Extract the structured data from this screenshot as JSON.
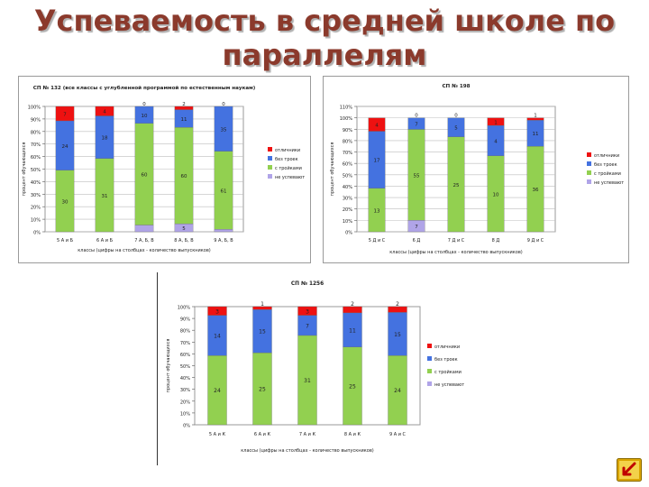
{
  "slide": {
    "title_line1": "Успеваемость в средней школе по",
    "title_line2": "параллелям",
    "nav_icon": "return-arrow-icon",
    "colors": {
      "title": "#8b3a2c",
      "nav_bg": "#d9a400",
      "nav_arrow": "#c00000"
    }
  },
  "chart_data": [
    {
      "type": "bar",
      "stacked": "percent",
      "title": "СП № 132 (все классы с углубленной программой по естественным наукам)",
      "xlabel": "классы (цифры на столбцах - количество выпускников)",
      "ylabel": "процент обучающихся",
      "ylim": [
        0,
        100
      ],
      "yticks": [
        "0%",
        "10%",
        "20%",
        "30%",
        "40%",
        "50%",
        "60%",
        "70%",
        "80%",
        "90%",
        "100%"
      ],
      "grid": true,
      "legend_position": "right",
      "categories": [
        "5 А и Б",
        "6 А и Б",
        "7 А, Б, В",
        "8 А, Б, В",
        "9 А, Б, В"
      ],
      "series": [
        {
          "name": "не успевают",
          "color": "#b0a4e8",
          "values": [
            0,
            0,
            4,
            5,
            2
          ],
          "labels": [
            "",
            "",
            "4",
            "5",
            "2"
          ]
        },
        {
          "name": "с тройками",
          "color": "#92d050",
          "values": [
            30,
            31,
            60,
            60,
            61
          ],
          "labels": [
            "30",
            "31",
            "60",
            "60",
            "61"
          ]
        },
        {
          "name": "без троек",
          "color": "#4472e0",
          "values": [
            24,
            18,
            10,
            11,
            35
          ],
          "labels": [
            "24",
            "18",
            "10",
            "11",
            "35"
          ]
        },
        {
          "name": "отличники",
          "color": "#ee1111",
          "values": [
            7,
            4,
            0,
            2,
            0
          ],
          "labels": [
            "7",
            "4",
            "0",
            "2",
            "0"
          ]
        }
      ]
    },
    {
      "type": "bar",
      "stacked": "percent",
      "title": "СП № 198",
      "xlabel": "классы (цифры на столбцах - количество выпускников)",
      "ylabel": "процент обучающихся",
      "ylim": [
        0,
        100
      ],
      "yticks": [
        "0%",
        "10%",
        "20%",
        "30%",
        "40%",
        "50%",
        "60%",
        "70%",
        "80%",
        "90%",
        "100%",
        "110%"
      ],
      "grid": true,
      "legend_position": "right",
      "categories": [
        "5 Д и С",
        "6 Д",
        "7 Д и С",
        "8 Д",
        "9 Д и С"
      ],
      "series": [
        {
          "name": "не успевают",
          "color": "#b0a4e8",
          "values": [
            0,
            7,
            0,
            0,
            0
          ],
          "labels": [
            "",
            "7",
            "",
            "",
            ""
          ]
        },
        {
          "name": "с тройками",
          "color": "#92d050",
          "values": [
            13,
            55,
            25,
            10,
            36
          ],
          "labels": [
            "13",
            "55",
            "25",
            "10",
            "36"
          ]
        },
        {
          "name": "без троек",
          "color": "#4472e0",
          "values": [
            17,
            7,
            5,
            4,
            11
          ],
          "labels": [
            "17",
            "7",
            "5",
            "4",
            "11"
          ]
        },
        {
          "name": "отличники",
          "color": "#ee1111",
          "values": [
            4,
            0,
            0,
            1,
            1
          ],
          "labels": [
            "4",
            "0",
            "0",
            "1",
            "1"
          ]
        }
      ]
    },
    {
      "type": "bar",
      "stacked": "percent",
      "title": "СП № 1256",
      "xlabel": "классы (цифры на столбцах - количество выпускников)",
      "ylabel": "процент обучающихся",
      "ylim": [
        0,
        100
      ],
      "yticks": [
        "0%",
        "10%",
        "20%",
        "30%",
        "40%",
        "50%",
        "60%",
        "70%",
        "80%",
        "90%",
        "100%"
      ],
      "grid": false,
      "legend_position": "right",
      "categories": [
        "5 А и К",
        "6 А и К",
        "7 А и К",
        "8 А и К",
        "9 А и С"
      ],
      "series": [
        {
          "name": "не успевают",
          "color": "#b0a4e8",
          "values": [
            0,
            0,
            0,
            0,
            0
          ],
          "labels": [
            "",
            "",
            "",
            "",
            ""
          ]
        },
        {
          "name": "с тройками",
          "color": "#92d050",
          "values": [
            24,
            25,
            31,
            25,
            24
          ],
          "labels": [
            "24",
            "25",
            "31",
            "25",
            "24"
          ]
        },
        {
          "name": "без троек",
          "color": "#4472e0",
          "values": [
            14,
            15,
            7,
            11,
            15
          ],
          "labels": [
            "14",
            "15",
            "7",
            "11",
            "15"
          ]
        },
        {
          "name": "отличники",
          "color": "#ee1111",
          "values": [
            3,
            1,
            3,
            2,
            2
          ],
          "labels": [
            "3",
            "1",
            "3",
            "2",
            "2"
          ]
        }
      ]
    }
  ]
}
